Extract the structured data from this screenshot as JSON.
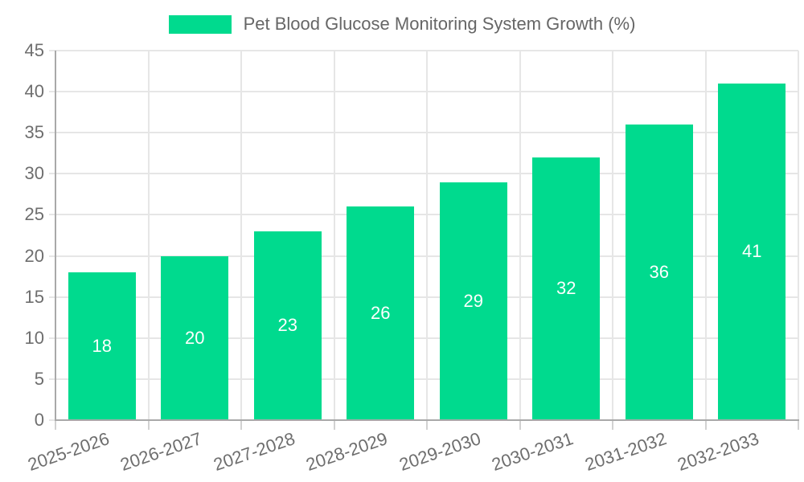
{
  "legend": {
    "label": "Pet Blood Glucose Monitoring System Growth (%)"
  },
  "chart_data": {
    "type": "bar",
    "title": "Pet Blood Glucose Monitoring System Growth (%)",
    "categories": [
      "2025-2026",
      "2026-2027",
      "2027-2028",
      "2028-2029",
      "2029-2030",
      "2030-2031",
      "2031-2032",
      "2032-2033"
    ],
    "values": [
      18,
      20,
      23,
      26,
      29,
      32,
      36,
      41
    ],
    "xlabel": "",
    "ylabel": "",
    "ylim": [
      0,
      45
    ],
    "yticks": [
      0,
      5,
      10,
      15,
      20,
      25,
      30,
      35,
      40,
      45
    ],
    "grid": true,
    "legend_position": "top",
    "bar_color": "#00da8e",
    "value_label_color": "#ffffff",
    "axis_text_color": "#6e6e6e",
    "legend_text_color": "#666666",
    "grid_color": "#e6e6e6",
    "tick_color": "#d2d2d2",
    "axis_line_color": "#a9a9a9",
    "background_color": "#ffffff"
  }
}
